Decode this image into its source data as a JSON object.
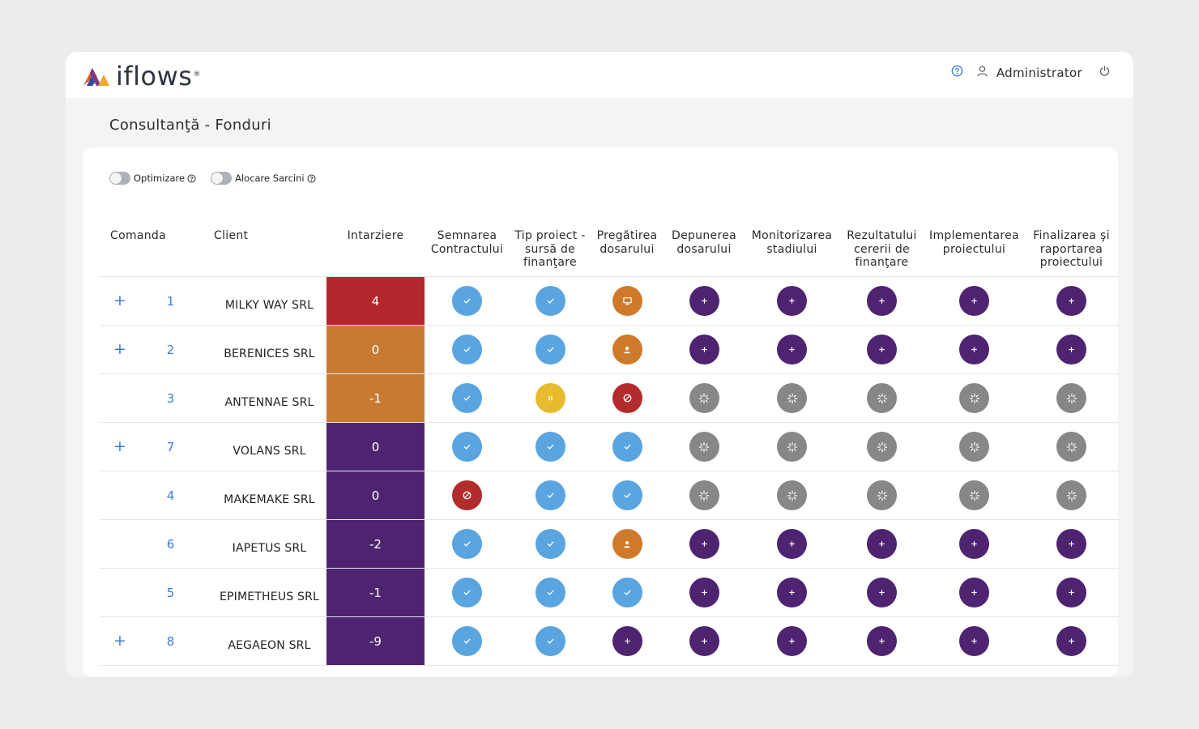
{
  "app": {
    "logo_text": "iflows",
    "logo_reg": "®",
    "user_name": "Administrator"
  },
  "page": {
    "title": "Consultanţă - Fonduri"
  },
  "toggles": [
    {
      "label": "Optimizare",
      "on": false
    },
    {
      "label": "Alocare Sarcini",
      "on": false
    }
  ],
  "columns": {
    "order": "Comanda",
    "client": "Client",
    "delay": "Intarziere",
    "stages": [
      "Semnarea Contractului",
      "Tip proiect - sursă de finanţare",
      "Pregătirea dosarului",
      "Depunerea dosarului",
      "Monitorizarea stadiului",
      "Rezultatului cererii de finanţare",
      "Implementarea proiectului",
      "Finalizarea şi raportarea proiectului"
    ]
  },
  "colors": {
    "delay_red": "#b3272d",
    "delay_orange": "#c87a30",
    "delay_purple": "#4e2470",
    "status_done": "#5aa4e0",
    "status_plus": "#4e2470",
    "status_wait": "#878787",
    "status_cancel": "#b32c2c",
    "status_pause": "#e8bb2e",
    "status_active": "#cf7a2b",
    "link": "#3b7ddd"
  },
  "rows": [
    {
      "expand": "+",
      "order": "1",
      "client": "MILKY WAY SRL",
      "delay": "4",
      "delay_color": "#b3272d",
      "stages": [
        "done",
        "done",
        "monitor",
        "plus",
        "plus",
        "plus",
        "plus",
        "plus"
      ]
    },
    {
      "expand": "+",
      "order": "2",
      "client": "BERENICES SRL",
      "delay": "0",
      "delay_color": "#c87a30",
      "stages": [
        "done",
        "done",
        "user",
        "plus",
        "plus",
        "plus",
        "plus",
        "plus"
      ]
    },
    {
      "expand": "",
      "order": "3",
      "client": "ANTENNAE SRL",
      "delay": "-1",
      "delay_color": "#c87a30",
      "stages": [
        "done",
        "pause",
        "cancel",
        "wait",
        "wait",
        "wait",
        "wait",
        "wait"
      ]
    },
    {
      "expand": "+",
      "order": "7",
      "client": "VOLANS SRL",
      "delay": "0",
      "delay_color": "#4e2470",
      "stages": [
        "done",
        "done",
        "done",
        "wait",
        "wait",
        "wait",
        "wait",
        "wait"
      ]
    },
    {
      "expand": "",
      "order": "4",
      "client": "MAKEMAKE SRL",
      "delay": "0",
      "delay_color": "#4e2470",
      "stages": [
        "cancel",
        "done",
        "done",
        "wait",
        "wait",
        "wait",
        "wait",
        "wait"
      ]
    },
    {
      "expand": "",
      "order": "6",
      "client": "IAPETUS SRL",
      "delay": "-2",
      "delay_color": "#4e2470",
      "stages": [
        "done",
        "done",
        "user",
        "plus",
        "plus",
        "plus",
        "plus",
        "plus"
      ]
    },
    {
      "expand": "",
      "order": "5",
      "client": "EPIMETHEUS SRL",
      "delay": "-1",
      "delay_color": "#4e2470",
      "stages": [
        "done",
        "done",
        "done",
        "plus",
        "plus",
        "plus",
        "plus",
        "plus"
      ]
    },
    {
      "expand": "+",
      "order": "8",
      "client": "AEGAEON SRL",
      "delay": "-9",
      "delay_color": "#4e2470",
      "stages": [
        "done",
        "done",
        "plus",
        "plus",
        "plus",
        "plus",
        "plus",
        "plus"
      ]
    }
  ]
}
